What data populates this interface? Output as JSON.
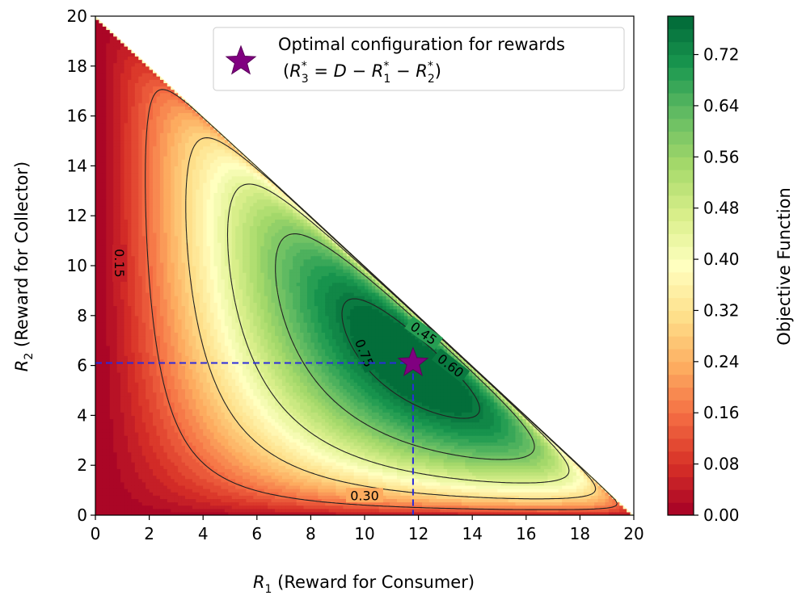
{
  "chart_data": {
    "type": "contour",
    "title": "",
    "xlabel": {
      "var": "R",
      "sub": "1",
      "rest": " (Reward for Consumer)"
    },
    "ylabel": {
      "var": "R",
      "sub": "2",
      "rest": " (Reward for Collector)"
    },
    "xlim": [
      0,
      20
    ],
    "ylim": [
      0,
      20
    ],
    "x_ticks": [
      "0",
      "2",
      "4",
      "6",
      "8",
      "10",
      "12",
      "14",
      "16",
      "18",
      "20"
    ],
    "y_ticks": [
      "0",
      "2",
      "4",
      "6",
      "8",
      "10",
      "12",
      "14",
      "16",
      "18",
      "20"
    ],
    "grid": false,
    "domain": "R1 + R2 <= 20",
    "colormap": "RdYlGn",
    "colorbar": {
      "label": "Objective Function",
      "range": [
        0,
        0.78
      ],
      "ticks": [
        "0.00",
        "0.08",
        "0.16",
        "0.24",
        "0.32",
        "0.40",
        "0.48",
        "0.56",
        "0.64",
        "0.72"
      ]
    },
    "contour_levels": [
      {
        "level": 0.15,
        "label": "0.15"
      },
      {
        "level": 0.3,
        "label": "0.30"
      },
      {
        "level": 0.45,
        "label": "0.45"
      },
      {
        "level": 0.6,
        "label": "0.60"
      },
      {
        "level": 0.75,
        "label": "0.75"
      }
    ],
    "optimum": {
      "x": 11.8,
      "y": 6.1,
      "marker": "star",
      "color": "#800080",
      "guide_color": "#2b2bdc"
    },
    "legend": {
      "location": "upper-right",
      "line1": "Optimal configuration for rewards",
      "line2": "(R*3 = D − R*1 − R*2)"
    }
  }
}
